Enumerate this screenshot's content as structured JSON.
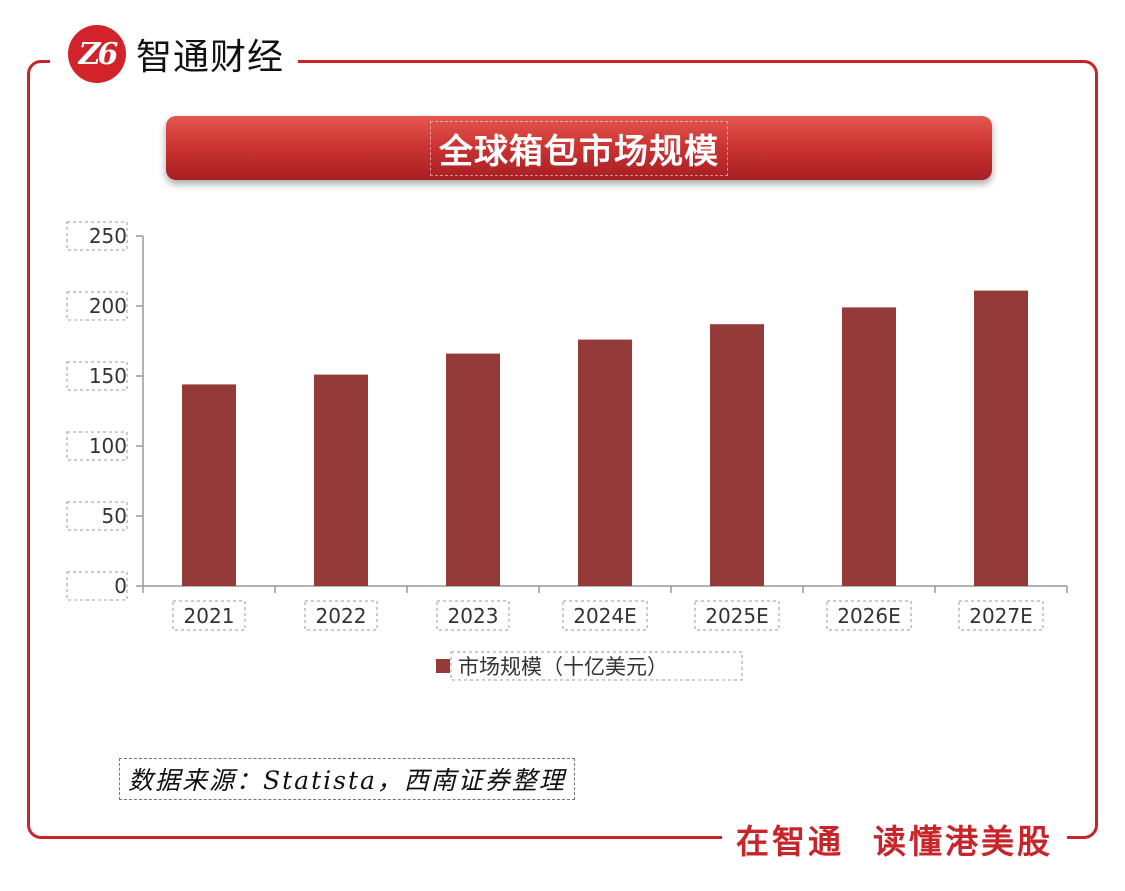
{
  "brand": {
    "logo_mark": "Z6",
    "name": "智通财经",
    "slogan": "在智通  读懂港美股"
  },
  "colors": {
    "accent": "#c8252b",
    "bar": "#943b3a"
  },
  "title": "全球箱包市场规模",
  "source": "数据来源：Statista，西南证券整理",
  "chart_data": {
    "type": "bar",
    "title": "全球箱包市场规模",
    "categories": [
      "2021",
      "2022",
      "2023",
      "2024E",
      "2025E",
      "2026E",
      "2027E"
    ],
    "series": [
      {
        "name": "市场规模（十亿美元）",
        "values": [
          144,
          151,
          166,
          176,
          187,
          199,
          211
        ]
      }
    ],
    "ylim": [
      0,
      250
    ],
    "yticks": [
      0,
      50,
      100,
      150,
      200,
      250
    ],
    "xlabel": "",
    "ylabel": "",
    "grid": false,
    "legend": "bottom"
  }
}
